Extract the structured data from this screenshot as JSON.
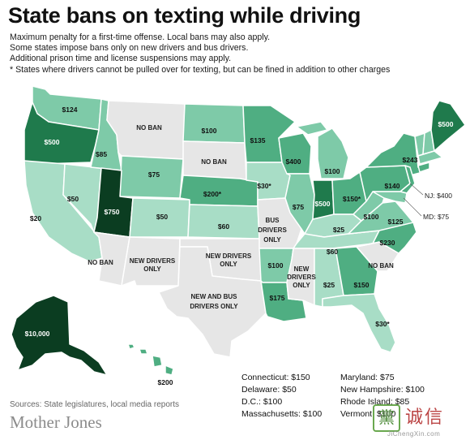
{
  "title": "State bans on texting while driving",
  "subtitle_lines": [
    "Maximum penalty for a first-time offense. Local bans may also apply.",
    "Some states impose bans only on new drivers and bus drivers.",
    "Additional prison time and license suspensions may apply.",
    "* States where drivers cannot be pulled over for texting, but can be fined in addition to other charges"
  ],
  "colors": {
    "light": "#a8ddc6",
    "mid_light": "#7ecaa8",
    "mid": "#4fae82",
    "dark": "#1f7a4c",
    "darkest": "#0b3d21",
    "no_ban": "#e6e6e6",
    "border": "#ffffff"
  },
  "states": [
    {
      "id": "WA",
      "label": "$124"
    },
    {
      "id": "OR",
      "label": "$500"
    },
    {
      "id": "CA",
      "label": "$20"
    },
    {
      "id": "NV",
      "label": "$50"
    },
    {
      "id": "ID",
      "label": "$85"
    },
    {
      "id": "MT",
      "label": "NO BAN"
    },
    {
      "id": "WY",
      "label": "$75"
    },
    {
      "id": "UT",
      "label": "$750"
    },
    {
      "id": "AZ",
      "label": "NO BAN"
    },
    {
      "id": "CO",
      "label": "$50"
    },
    {
      "id": "NM",
      "label": "NEW DRIVERS ONLY"
    },
    {
      "id": "ND",
      "label": "$100"
    },
    {
      "id": "SD",
      "label": "NO BAN"
    },
    {
      "id": "NE",
      "label": "$200*"
    },
    {
      "id": "KS",
      "label": "$60"
    },
    {
      "id": "OK",
      "label": "NEW DRIVERS ONLY"
    },
    {
      "id": "TX",
      "label": "NEW AND BUS DRIVERS ONLY"
    },
    {
      "id": "MN",
      "label": "$135"
    },
    {
      "id": "IA",
      "label": "$30*"
    },
    {
      "id": "MO",
      "label": "BUS DRIVERS ONLY"
    },
    {
      "id": "AR",
      "label": "$100"
    },
    {
      "id": "LA",
      "label": "$175"
    },
    {
      "id": "WI",
      "label": "$400"
    },
    {
      "id": "IL",
      "label": "$75"
    },
    {
      "id": "MI",
      "label": "$100"
    },
    {
      "id": "IN",
      "label": "$500"
    },
    {
      "id": "OH",
      "label": "$150*"
    },
    {
      "id": "KY",
      "label": "$25"
    },
    {
      "id": "TN",
      "label": "$60"
    },
    {
      "id": "MS",
      "label": "NEW DRIVERS ONLY"
    },
    {
      "id": "AL",
      "label": "$25"
    },
    {
      "id": "GA",
      "label": "$150"
    },
    {
      "id": "FL",
      "label": "$30*"
    },
    {
      "id": "SC",
      "label": "NO BAN"
    },
    {
      "id": "NC",
      "label": "$230"
    },
    {
      "id": "VA",
      "label": "$125"
    },
    {
      "id": "WV",
      "label": "$100"
    },
    {
      "id": "PA",
      "label": "$140"
    },
    {
      "id": "NY",
      "label": "$243"
    },
    {
      "id": "ME",
      "label": "$500"
    },
    {
      "id": "NJ",
      "label": "NJ: $400"
    },
    {
      "id": "MD",
      "label": "MD: $75"
    },
    {
      "id": "AK",
      "label": "$10,000"
    },
    {
      "id": "HI",
      "label": "$200"
    }
  ],
  "footnotes_left": [
    "Connecticut: $150",
    "Delaware: $50",
    "D.C.: $100",
    "Massachusetts: $100"
  ],
  "footnotes_right": [
    "Maryland: $75",
    "New Hampshire: $100",
    "Rhode Island: $85",
    "Vermont: $100"
  ],
  "sources": "Sources: State legislatures, local media reports",
  "publisher": "Mother Jones",
  "watermark": {
    "mark": "黨",
    "text": "诚信",
    "url": "JiChengXin.com"
  }
}
